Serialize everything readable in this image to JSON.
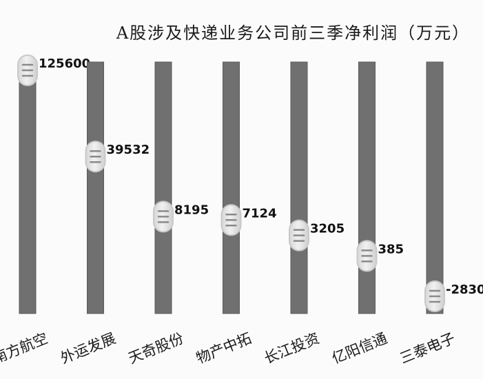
{
  "chart_data": {
    "type": "bar",
    "title": "A股涉及快递业务公司前三季净利润（万元）",
    "categories": [
      "南方航空",
      "外运发展",
      "天奇股份",
      "物产中拓",
      "长江投资",
      "亿阳信通",
      "三泰电子"
    ],
    "values": [
      125600,
      39532,
      8195,
      7124,
      3205,
      385,
      -2830
    ],
    "value_labels": [
      "125600",
      "39532",
      "8195",
      "7124",
      "3205",
      "385",
      "-2830"
    ],
    "colors": {
      "bar": "#707070",
      "bar_edge": "#5a5a5a",
      "knob": "#f1f1f1",
      "knob_ring": "#c9c9c9",
      "knob_line": "#8a8a8a",
      "value_text": "#111111",
      "category_text": "#1a1a1a"
    }
  }
}
